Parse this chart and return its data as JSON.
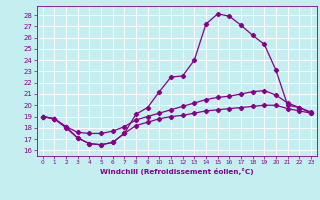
{
  "xlabel": "Windchill (Refroidissement éolien,°C)",
  "x_ticks": [
    0,
    1,
    2,
    3,
    4,
    5,
    6,
    7,
    8,
    9,
    10,
    11,
    12,
    13,
    14,
    15,
    16,
    17,
    18,
    19,
    20,
    21,
    22,
    23
  ],
  "ylim": [
    15.5,
    28.8
  ],
  "xlim": [
    -0.5,
    23.5
  ],
  "y_ticks": [
    16,
    17,
    18,
    19,
    20,
    21,
    22,
    23,
    24,
    25,
    26,
    27,
    28
  ],
  "bg_color": "#c5eef0",
  "grid_color": "#ffffff",
  "line_color": "#880088",
  "line1_x": [
    0,
    1,
    2,
    3,
    4,
    5,
    6,
    7,
    8,
    9,
    10,
    11,
    12,
    13,
    14,
    15,
    16,
    17,
    18,
    19,
    20,
    21,
    22,
    23
  ],
  "line1_y": [
    19.0,
    18.8,
    18.0,
    17.1,
    16.6,
    16.5,
    16.7,
    17.5,
    19.2,
    19.8,
    21.2,
    22.5,
    22.6,
    24.0,
    27.2,
    28.1,
    27.9,
    27.1,
    26.2,
    25.4,
    23.1,
    20.0,
    19.8,
    19.3
  ],
  "line2_x": [
    0,
    1,
    2,
    3,
    4,
    5,
    6,
    7,
    8,
    9,
    10,
    11,
    12,
    13,
    14,
    15,
    16,
    17,
    18,
    19,
    20,
    21,
    22,
    23
  ],
  "line2_y": [
    19.0,
    18.8,
    18.1,
    17.6,
    17.5,
    17.5,
    17.7,
    18.1,
    18.7,
    19.0,
    19.3,
    19.6,
    19.9,
    20.2,
    20.5,
    20.7,
    20.8,
    21.0,
    21.2,
    21.3,
    20.9,
    20.2,
    19.8,
    19.4
  ],
  "line3_x": [
    0,
    1,
    2,
    3,
    4,
    5,
    6,
    7,
    8,
    9,
    10,
    11,
    12,
    13,
    14,
    15,
    16,
    17,
    18,
    19,
    20,
    21,
    22,
    23
  ],
  "line3_y": [
    19.0,
    18.8,
    18.1,
    17.1,
    16.6,
    16.5,
    16.7,
    17.5,
    18.2,
    18.5,
    18.8,
    19.0,
    19.1,
    19.3,
    19.5,
    19.6,
    19.7,
    19.8,
    19.9,
    20.0,
    20.0,
    19.7,
    19.5,
    19.3
  ]
}
